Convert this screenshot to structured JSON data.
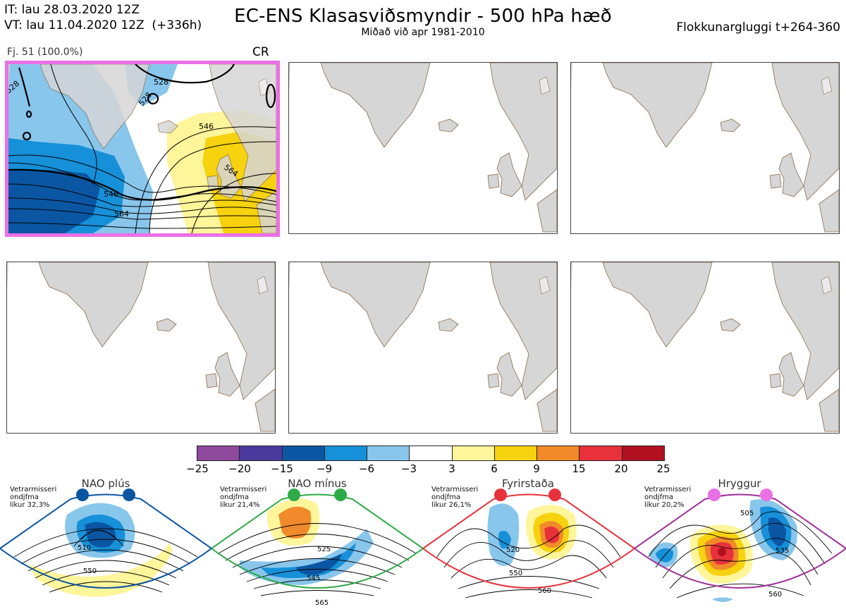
{
  "header": {
    "it_line": "IT: lau 28.03.2020 12Z",
    "vt_line": "VT: lau 11.04.2020 12Z  (+336h)",
    "title": "EC-ENS Klasasviðsmyndir - 500 hPa hæð",
    "subtitle": "Miðað við apr 1981-2010",
    "window": "Flokkunargluggi t+264-360"
  },
  "panel1": {
    "label": "Fj. 51 (100.0%)",
    "regime": "CR",
    "contours": [
      "528",
      "528",
      "546",
      "564",
      "546",
      "564",
      "528"
    ],
    "highlight_color": "#ea70e6"
  },
  "colorbar": {
    "ticks": [
      "−25",
      "−20",
      "−15",
      "−9",
      "−6",
      "−3",
      "3",
      "6",
      "9",
      "15",
      "20",
      "25"
    ],
    "colors": [
      "#8e4a9c",
      "#4a3a9c",
      "#0b56a3",
      "#1690d8",
      "#88c6ec",
      "#ffffff",
      "#fff59a",
      "#f7d20f",
      "#f08a2a",
      "#e8313b",
      "#b01020"
    ]
  },
  "regimes": [
    {
      "name": "NAO plús",
      "text": [
        "Vetrarmisseri",
        "ondjfma",
        "líkur 32,3%"
      ],
      "color": "#0b56a3",
      "labels": [
        "510",
        "550"
      ]
    },
    {
      "name": "NAO mínus",
      "text": [
        "Vetrarmisseri",
        "ondjfma",
        "líkur 21,4%"
      ],
      "color": "#2eaa47",
      "labels": [
        "525",
        "545",
        "565"
      ]
    },
    {
      "name": "Fyrirstaða",
      "text": [
        "Vetrarmisseri",
        "ondjfma",
        "líkur 26,1%"
      ],
      "color": "#e8313b",
      "labels": [
        "520",
        "550",
        "560"
      ]
    },
    {
      "name": "Hryggur",
      "text": [
        "Vetrarmisseri",
        "ondjfma",
        "líkur 20,2%"
      ],
      "color": "#a12f97",
      "labels": [
        "505",
        "535",
        "560"
      ]
    }
  ]
}
